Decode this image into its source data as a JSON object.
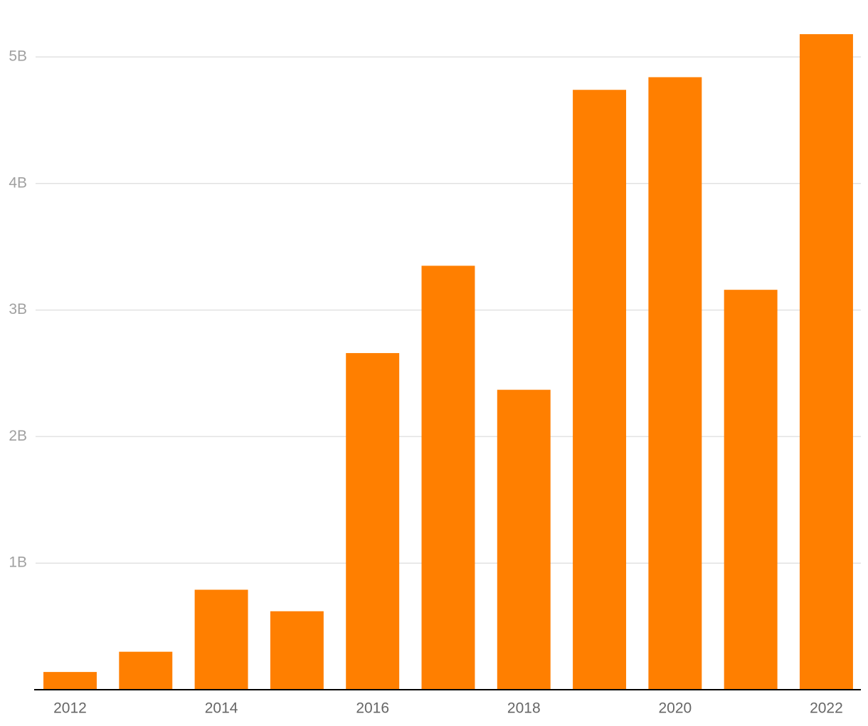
{
  "chart_data": {
    "type": "bar",
    "categories": [
      "2012",
      null,
      "2014",
      null,
      "2016",
      null,
      "2018",
      null,
      "2020",
      null,
      "2022"
    ],
    "values": [
      0.14,
      0.3,
      0.79,
      0.62,
      2.66,
      3.35,
      2.37,
      4.74,
      4.84,
      3.16,
      5.18
    ],
    "color": "#ff7f00",
    "ylim": [
      0,
      5.45
    ],
    "yticks": [
      {
        "value": 1,
        "label": "1B"
      },
      {
        "value": 2,
        "label": "2B"
      },
      {
        "value": 3,
        "label": "3B"
      },
      {
        "value": 4,
        "label": "4B"
      },
      {
        "value": 5,
        "label": "5B"
      }
    ],
    "grid": true
  }
}
